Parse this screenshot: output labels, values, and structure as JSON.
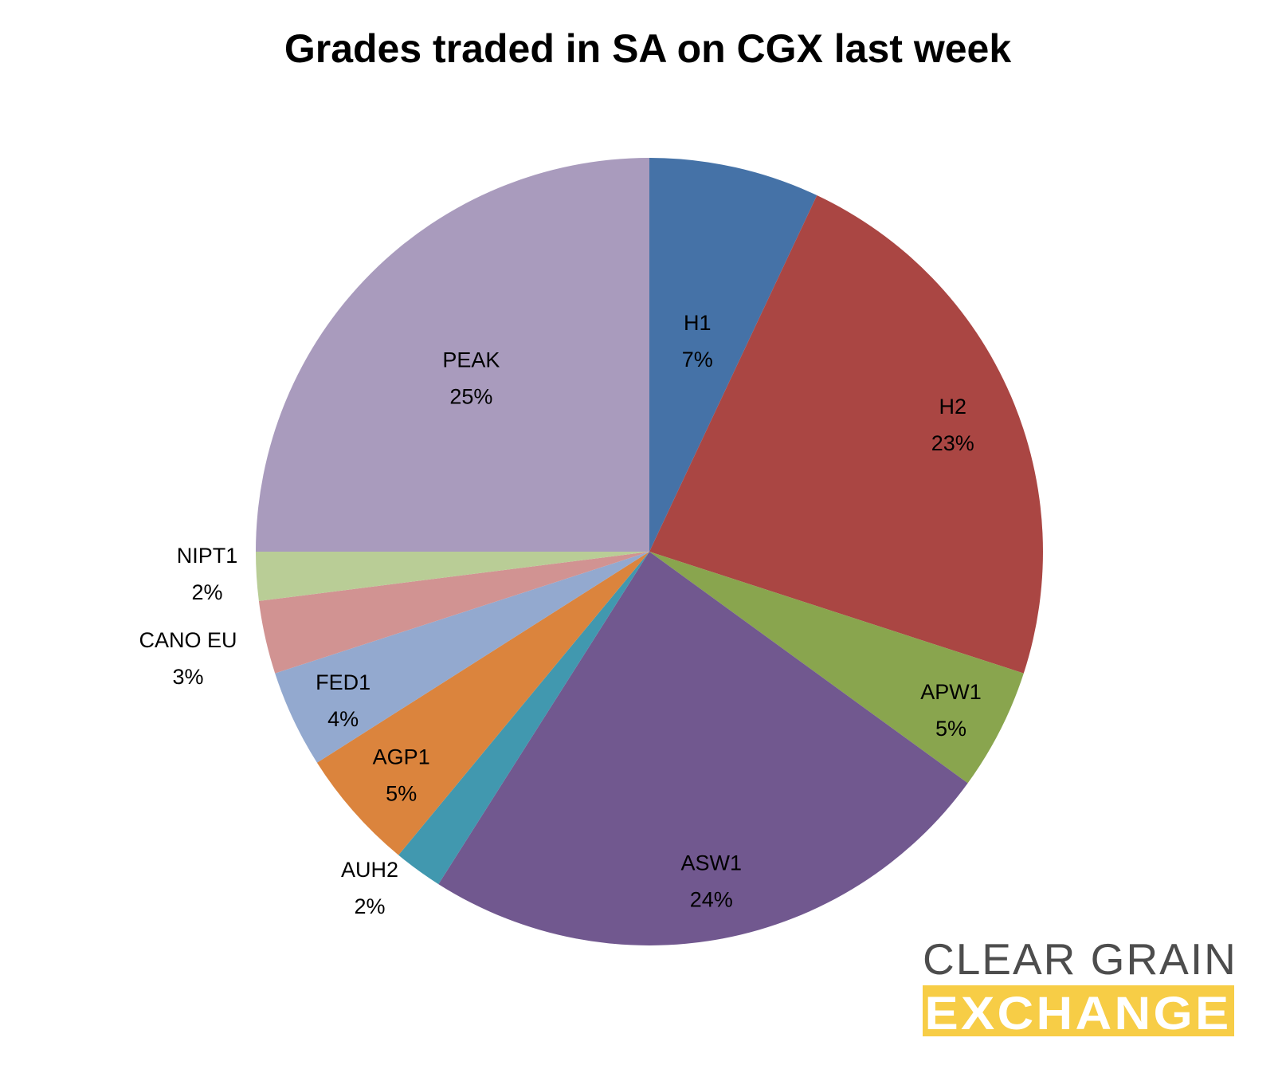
{
  "chart_data": {
    "type": "pie",
    "title": "Grades traded in SA on CGX last week",
    "start_angle_deg": 0,
    "direction": "clockwise",
    "slices": [
      {
        "name": "H1",
        "value": 7,
        "value_label": "7%",
        "color": "#4572a7"
      },
      {
        "name": "H2",
        "value": 23,
        "value_label": "23%",
        "color": "#aa4643"
      },
      {
        "name": "APW1",
        "value": 5,
        "value_label": "5%",
        "color": "#89a54e"
      },
      {
        "name": "ASW1",
        "value": 24,
        "value_label": "24%",
        "color": "#71588f"
      },
      {
        "name": "AUH2",
        "value": 2,
        "value_label": "2%",
        "color": "#4198af"
      },
      {
        "name": "AGP1",
        "value": 5,
        "value_label": "5%",
        "color": "#db843d"
      },
      {
        "name": "FED1",
        "value": 4,
        "value_label": "4%",
        "color": "#93a9cf"
      },
      {
        "name": "CANO EU",
        "value": 3,
        "value_label": "3%",
        "color": "#d19392"
      },
      {
        "name": "NIPT1",
        "value": 2,
        "value_label": "2%",
        "color": "#b9cd96"
      },
      {
        "name": "PEAK",
        "value": 25,
        "value_label": "25%",
        "color": "#a99bbd"
      }
    ]
  },
  "logo": {
    "line1": "CLEAR GRAIN",
    "line2": "EXCHANGE",
    "line1_color": "#4d4d4d",
    "line2_bg_color": "#f7cd46"
  }
}
